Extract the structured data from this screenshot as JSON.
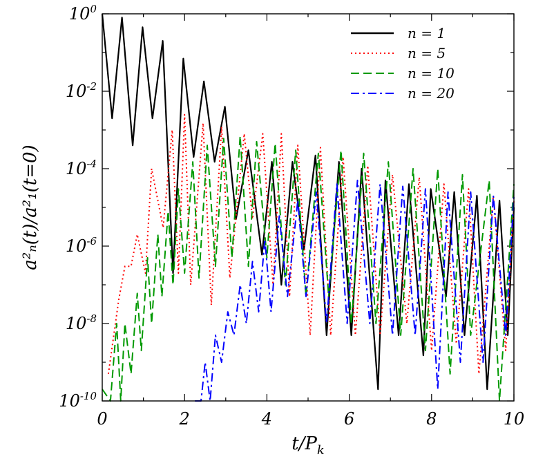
{
  "chart_data": {
    "type": "line",
    "x_axis_label": "t/P",
    "x_axis_label_sub": "k",
    "y_axis_label": "a²ₙ(t)/a²₁(t=0)",
    "y_scale": "log",
    "xlim": [
      0,
      10
    ],
    "ylim": [
      1e-10,
      1
    ],
    "x_ticks": [
      "0",
      "2",
      "4",
      "6",
      "8",
      "10"
    ],
    "y_ticks": [
      {
        "base": "10",
        "exp": "0"
      },
      {
        "base": "10",
        "exp": "-2"
      },
      {
        "base": "10",
        "exp": "-4"
      },
      {
        "base": "10",
        "exp": "-6"
      },
      {
        "base": "10",
        "exp": "-8"
      },
      {
        "base": "10",
        "exp": "-10"
      }
    ],
    "grid": false,
    "legend_position": "top-right",
    "series": [
      {
        "name": "n = 1",
        "color": "#000000",
        "dash": "solid",
        "peaks": [
          [
            0.0,
            1.0
          ],
          [
            0.48,
            0.8
          ],
          [
            0.98,
            0.45
          ],
          [
            1.47,
            0.2
          ],
          [
            1.97,
            0.07
          ],
          [
            2.47,
            0.018
          ],
          [
            2.98,
            0.004
          ],
          [
            3.55,
            0.0003
          ],
          [
            4.12,
            0.00015
          ],
          [
            4.62,
            0.00015
          ],
          [
            5.18,
            0.00022
          ],
          [
            5.75,
            0.00015
          ],
          [
            6.3,
            0.0001
          ],
          [
            6.88,
            5e-05
          ],
          [
            7.45,
            4e-05
          ],
          [
            7.98,
            3e-05
          ],
          [
            8.55,
            2.5e-05
          ],
          [
            9.1,
            2e-05
          ],
          [
            9.65,
            1.5e-05
          ],
          [
            10.0,
            1e-05
          ]
        ],
        "dips": [
          [
            0.24,
            0.002
          ],
          [
            0.74,
            0.0004
          ],
          [
            1.22,
            0.002
          ],
          [
            1.72,
            2e-07
          ],
          [
            2.22,
            0.0002
          ],
          [
            2.73,
            0.00015
          ],
          [
            3.25,
            5e-06
          ],
          [
            3.88,
            6e-07
          ],
          [
            4.35,
            1e-07
          ],
          [
            4.9,
            8e-07
          ],
          [
            5.45,
            5e-09
          ],
          [
            6.05,
            5e-09
          ],
          [
            6.7,
            2e-10
          ],
          [
            7.2,
            5e-09
          ],
          [
            7.8,
            1.5e-09
          ],
          [
            8.35,
            5e-08
          ],
          [
            8.8,
            5e-09
          ],
          [
            9.35,
            2e-10
          ],
          [
            9.85,
            5e-09
          ]
        ]
      },
      {
        "name": "n = 5",
        "color": "#ff0000",
        "dash": "dot",
        "peaks": [
          [
            0.15,
            5e-10
          ],
          [
            0.55,
            3e-07
          ],
          [
            0.85,
            2e-06
          ],
          [
            1.2,
            0.0001
          ],
          [
            1.7,
            0.001
          ],
          [
            2.0,
            0.0025
          ],
          [
            2.45,
            0.0015
          ],
          [
            2.9,
            0.0012
          ],
          [
            3.45,
            0.0008
          ],
          [
            3.9,
            0.0008
          ],
          [
            4.35,
            0.0008
          ],
          [
            4.75,
            0.0004
          ],
          [
            5.3,
            0.00035
          ],
          [
            5.85,
            0.0002
          ],
          [
            6.45,
            0.00012
          ],
          [
            7.05,
            7e-05
          ],
          [
            7.7,
            6e-05
          ],
          [
            8.3,
            4e-05
          ],
          [
            8.9,
            3e-05
          ],
          [
            9.5,
            2e-05
          ],
          [
            10.0,
            1.5e-05
          ]
        ],
        "dips": [
          [
            0.4,
            4e-08
          ],
          [
            0.7,
            3e-07
          ],
          [
            1.05,
            2e-07
          ],
          [
            1.48,
            3e-06
          ],
          [
            1.85,
            2e-07
          ],
          [
            2.15,
            1e-07
          ],
          [
            2.65,
            3e-08
          ],
          [
            3.1,
            1.5e-07
          ],
          [
            3.65,
            5e-06
          ],
          [
            4.15,
            1e-07
          ],
          [
            4.55,
            5e-08
          ],
          [
            5.05,
            5e-09
          ],
          [
            5.55,
            5e-09
          ],
          [
            6.15,
            5e-09
          ],
          [
            6.75,
            5e-09
          ],
          [
            7.4,
            1e-08
          ],
          [
            8.0,
            2e-09
          ],
          [
            8.6,
            3e-09
          ],
          [
            9.15,
            5e-10
          ],
          [
            9.8,
            2e-09
          ]
        ]
      },
      {
        "name": "n = 10",
        "color": "#009900",
        "dash": "dash",
        "peaks": [
          [
            0.0,
            2e-10
          ],
          [
            0.35,
            1e-08
          ],
          [
            0.55,
            1e-08
          ],
          [
            0.85,
            6e-08
          ],
          [
            1.1,
            5e-07
          ],
          [
            1.35,
            2e-06
          ],
          [
            1.6,
            8e-06
          ],
          [
            1.85,
            3e-05
          ],
          [
            2.2,
            0.00015
          ],
          [
            2.55,
            0.0004
          ],
          [
            2.95,
            0.0006
          ],
          [
            3.35,
            0.0007
          ],
          [
            3.75,
            0.0005
          ],
          [
            4.2,
            0.00045
          ],
          [
            4.7,
            0.0003
          ],
          [
            5.25,
            0.00025
          ],
          [
            5.8,
            0.0003
          ],
          [
            6.35,
            0.00025
          ],
          [
            6.95,
            0.00015
          ],
          [
            7.55,
            0.0001
          ],
          [
            8.15,
            0.0001
          ],
          [
            8.75,
            7e-05
          ],
          [
            9.4,
            5e-05
          ],
          [
            10.0,
            4e-05
          ]
        ],
        "dips": [
          [
            0.2,
            1e-10
          ],
          [
            0.45,
            1e-10
          ],
          [
            0.7,
            5e-10
          ],
          [
            0.95,
            2e-09
          ],
          [
            1.2,
            1e-08
          ],
          [
            1.45,
            5e-08
          ],
          [
            1.72,
            1e-07
          ],
          [
            2.0,
            2e-07
          ],
          [
            2.35,
            1.5e-07
          ],
          [
            2.75,
            3e-07
          ],
          [
            3.15,
            5e-07
          ],
          [
            3.55,
            3e-07
          ],
          [
            4.0,
            5e-07
          ],
          [
            4.45,
            1e-07
          ],
          [
            4.95,
            5e-08
          ],
          [
            5.5,
            5e-08
          ],
          [
            6.05,
            1e-08
          ],
          [
            6.65,
            1e-08
          ],
          [
            7.25,
            5e-09
          ],
          [
            7.85,
            2e-09
          ],
          [
            8.45,
            5e-10
          ],
          [
            8.95,
            5e-09
          ],
          [
            9.65,
            1e-10
          ]
        ]
      },
      {
        "name": "n = 20",
        "color": "#0000ff",
        "dash": "dashdot",
        "peaks": [
          [
            2.25,
            1e-10
          ],
          [
            2.5,
            1e-09
          ],
          [
            2.75,
            5e-09
          ],
          [
            3.05,
            2e-08
          ],
          [
            3.35,
            1e-07
          ],
          [
            3.65,
            4e-07
          ],
          [
            3.95,
            1.5e-06
          ],
          [
            4.3,
            6e-06
          ],
          [
            4.75,
            1.5e-05
          ],
          [
            5.2,
            2.5e-05
          ],
          [
            5.7,
            4e-05
          ],
          [
            6.2,
            5e-05
          ],
          [
            6.75,
            4e-05
          ],
          [
            7.3,
            3.5e-05
          ],
          [
            7.85,
            3e-05
          ],
          [
            8.4,
            2.5e-05
          ],
          [
            8.95,
            2.5e-05
          ],
          [
            9.5,
            2e-05
          ],
          [
            10.0,
            2e-05
          ]
        ],
        "dips": [
          [
            2.4,
            1e-10
          ],
          [
            2.62,
            1e-10
          ],
          [
            2.9,
            1e-09
          ],
          [
            3.2,
            5e-09
          ],
          [
            3.5,
            1e-08
          ],
          [
            3.8,
            2e-08
          ],
          [
            4.1,
            2e-08
          ],
          [
            4.5,
            5e-08
          ],
          [
            4.95,
            5e-08
          ],
          [
            5.45,
            1e-08
          ],
          [
            5.95,
            1e-08
          ],
          [
            6.5,
            1e-08
          ],
          [
            7.05,
            5e-09
          ],
          [
            7.6,
            5e-09
          ],
          [
            8.15,
            2e-10
          ],
          [
            8.7,
            1e-09
          ],
          [
            9.25,
            1e-09
          ],
          [
            9.8,
            5e-09
          ]
        ]
      }
    ]
  }
}
